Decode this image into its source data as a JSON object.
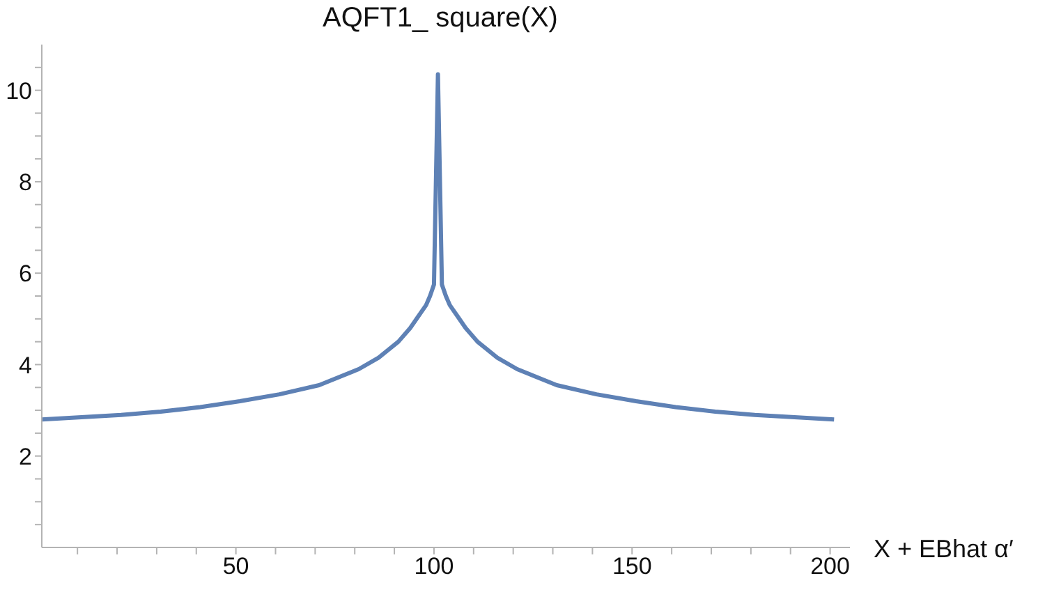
{
  "chart_data": {
    "type": "line",
    "title": "AQFT1_ square(X)",
    "xlabel": "X + EBhat α′",
    "x": [
      1,
      11,
      21,
      31,
      41,
      51,
      61,
      71,
      81,
      86,
      91,
      94,
      96,
      98,
      99,
      100,
      101,
      102,
      103,
      104,
      106,
      108,
      111,
      116,
      121,
      131,
      141,
      151,
      161,
      171,
      181,
      191,
      201
    ],
    "series": [
      {
        "color": "#5e81b5",
        "values": [
          2.8,
          2.85,
          2.9,
          2.97,
          3.07,
          3.2,
          3.35,
          3.55,
          3.9,
          4.15,
          4.5,
          4.8,
          5.05,
          5.3,
          5.5,
          5.75,
          10.35,
          5.75,
          5.5,
          5.3,
          5.05,
          4.8,
          4.5,
          4.15,
          3.9,
          3.55,
          3.35,
          3.2,
          3.07,
          2.97,
          2.9,
          2.85,
          2.8
        ]
      }
    ],
    "xlim": [
      1,
      205
    ],
    "xticks": [
      {
        "value": 10,
        "label": null
      },
      {
        "value": 20,
        "label": null
      },
      {
        "value": 30,
        "label": null
      },
      {
        "value": 40,
        "label": null
      },
      50,
      {
        "value": 60,
        "label": null
      },
      {
        "value": 70,
        "label": null
      },
      {
        "value": 80,
        "label": null
      },
      {
        "value": 90,
        "label": null
      },
      100,
      {
        "value": 110,
        "label": null
      },
      {
        "value": 120,
        "label": null
      },
      {
        "value": 130,
        "label": null
      },
      {
        "value": 140,
        "label": null
      },
      150,
      {
        "value": 160,
        "label": null
      },
      {
        "value": 170,
        "label": null
      },
      {
        "value": 180,
        "label": null
      },
      {
        "value": 190,
        "label": null
      },
      200
    ],
    "ylim": [
      0,
      11
    ],
    "yticks": [
      {
        "value": 0.5,
        "label": null
      },
      {
        "value": 1,
        "label": null
      },
      {
        "value": 1.5,
        "label": null
      },
      2,
      {
        "value": 2.5,
        "label": null
      },
      {
        "value": 3,
        "label": null
      },
      {
        "value": 3.5,
        "label": null
      },
      4,
      {
        "value": 4.5,
        "label": null
      },
      {
        "value": 5,
        "label": null
      },
      {
        "value": 5.5,
        "label": null
      },
      6,
      {
        "value": 6.5,
        "label": null
      },
      {
        "value": 7,
        "label": null
      },
      {
        "value": 7.5,
        "label": null
      },
      8,
      {
        "value": 8.5,
        "label": null
      },
      {
        "value": 9,
        "label": null
      },
      {
        "value": 9.5,
        "label": null
      },
      10,
      {
        "value": 10.5,
        "label": null
      }
    ],
    "grid": false,
    "legend": false,
    "marker": "none",
    "line_style": "solid"
  }
}
